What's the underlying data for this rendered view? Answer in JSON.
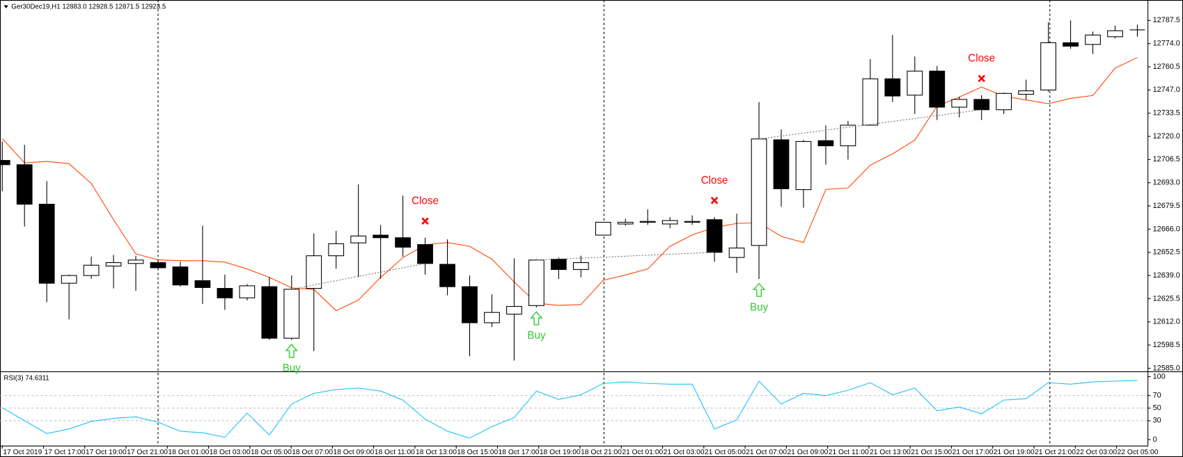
{
  "header": {
    "text": "Ger30Dec19,H1  12883.0 12928.5 12871.5 12923.5"
  },
  "chart_data": [
    {
      "type": "candlestick",
      "open": [
        12706,
        12703.5,
        12680.5,
        12634.5,
        12639,
        12644.5,
        12646,
        12646.5,
        12644,
        12636,
        12631.5,
        12626,
        12632.5,
        12602.5,
        12631.5,
        12650.5,
        12658,
        12662.5,
        12661,
        12657,
        12645.5,
        12632.5,
        12611.5,
        12616.5,
        12621.5,
        12648.5,
        12642.5,
        12662.5,
        12669,
        12670,
        12669,
        12670,
        12671.5,
        12649.5,
        12656.5,
        12718,
        12689,
        12717.5,
        12714.5,
        12726.5,
        12753.5,
        12744,
        12758,
        12737,
        12741.5,
        12735.5,
        12744.5,
        12747,
        12774.5,
        12773.5,
        12778,
        12782
      ],
      "high": [
        12717,
        12715,
        12694,
        12639.5,
        12650,
        12651,
        12650.5,
        12648.5,
        12647,
        12668,
        12639.5,
        12634,
        12638,
        12639,
        12663.5,
        12665,
        12692,
        12668.5,
        12685.5,
        12661,
        12660,
        12639,
        12628,
        12649,
        12648.5,
        12649.5,
        12650.5,
        12670,
        12672,
        12677.5,
        12673,
        12674,
        12673,
        12675,
        12740,
        12724,
        12718,
        12726.5,
        12729,
        12765,
        12779,
        12766.5,
        12761,
        12743,
        12744,
        12745.5,
        12753,
        12786.5,
        12787.5,
        12781,
        12784.5,
        12785
      ],
      "low": [
        12688,
        12667.5,
        12623.5,
        12613.5,
        12637,
        12631.5,
        12630,
        12643,
        12632.5,
        12622.5,
        12619,
        12624.5,
        12601.5,
        12601.5,
        12595,
        12643,
        12638,
        12637,
        12650,
        12639.5,
        12627.5,
        12592,
        12609,
        12589.5,
        12620.5,
        12637,
        12638,
        12662.5,
        12668,
        12668.5,
        12666.5,
        12668.5,
        12647,
        12640.5,
        12637,
        12679,
        12678.5,
        12703.5,
        12706.5,
        12726.5,
        12740,
        12733,
        12729.5,
        12731,
        12729.5,
        12733,
        12741.5,
        12746,
        12771,
        12768,
        12777,
        12778
      ],
      "close": [
        12703.5,
        12680.5,
        12634.5,
        12639,
        12645,
        12646.5,
        12648,
        12643.5,
        12633.5,
        12632,
        12626,
        12633,
        12602.5,
        12631,
        12650.5,
        12657.5,
        12662,
        12661,
        12655.5,
        12646,
        12632.5,
        12611.5,
        12617.5,
        12621,
        12648,
        12642.5,
        12646.5,
        12670,
        12670,
        12670.5,
        12671,
        12670.5,
        12652.5,
        12655,
        12718.5,
        12689.5,
        12717,
        12714.5,
        12726.5,
        12753.5,
        12743.5,
        12758,
        12737,
        12741.5,
        12735.5,
        12745,
        12746.5,
        12774.5,
        12772.5,
        12779,
        12781.5,
        12782
      ],
      "up_color": "#ffffff",
      "down_color": "#000000",
      "series": [
        {
          "color": "#ff4500",
          "values": [
            12718.7,
            12704.6,
            12705.4,
            12704.1,
            12692.6,
            12671.5,
            12651.6,
            12648.1,
            12647.6,
            12647.6,
            12646.8,
            12642.8,
            12637.9,
            12631.8,
            12630.9,
            12618.5,
            12624.7,
            12637.9,
            12649.4,
            12656.9,
            12658.2,
            12656.0,
            12648.5,
            12635.3,
            12622.9,
            12621.6,
            12622.1,
            12636.2,
            12639.3,
            12642.8,
            12656.0,
            12662.6,
            12667.0,
            12669.3,
            12669.7,
            12661.8,
            12658.2,
            12689.1,
            12690.0,
            12703.2,
            12709.8,
            12717.8,
            12737.6,
            12742.9,
            12748.7,
            12743.4,
            12741.2,
            12739.0,
            12742.1,
            12743.8,
            12759.7,
            12765.9
          ]
        }
      ],
      "annotations": [
        {
          "text": "Buy",
          "candle": 13,
          "color": "#32cd32"
        },
        {
          "text": "Close",
          "candle": 19,
          "color": "#ff0000"
        },
        {
          "text": "Buy",
          "candle": 24,
          "color": "#32cd32"
        },
        {
          "text": "Close",
          "candle": 32,
          "color": "#ff0000"
        },
        {
          "text": "Buy",
          "candle": 34,
          "color": "#32cd32"
        },
        {
          "text": "Close",
          "candle": 44,
          "color": "#ff0000"
        }
      ],
      "ylim": [
        12583.2,
        12798.5
      ],
      "yticks": [
        12787.5,
        {
          "value": 12774.0,
          "label": "12774.0"
        },
        12760.5,
        {
          "value": 12747.0,
          "label": "12747.0"
        },
        12733.5,
        {
          "value": 12720.0,
          "label": "12720.0"
        },
        12706.5,
        {
          "value": 12693.0,
          "label": "12693.0"
        },
        12679.5,
        {
          "value": 12666.0,
          "label": "12666.0"
        },
        12652.5,
        {
          "value": 12639.0,
          "label": "12639.0"
        },
        12625.5,
        {
          "value": 12612.0,
          "label": "12612.0"
        },
        12598.5,
        {
          "value": 12585.0,
          "label": "12585.0"
        }
      ],
      "x_labels": [
        "17 Oct 2019",
        "17 Oct 17:00",
        "17 Oct 19:00",
        "17 Oct 21:00",
        "18 Oct 01:00",
        "18 Oct 03:00",
        "18 Oct 05:00",
        "18 Oct 07:00",
        "18 Oct 09:00",
        "18 Oct 11:00",
        "18 Oct 13:00",
        "18 Oct 15:00",
        "18 Oct 17:00",
        "18 Oct 19:00",
        "18 Oct 21:00",
        "21 Oct 01:00",
        "21 Oct 03:00",
        "21 Oct 05:00",
        "21 Oct 07:00",
        "21 Oct 09:00",
        "21 Oct 11:00",
        "21 Oct 13:00",
        "21 Oct 15:00",
        "21 Oct 17:00",
        "21 Oct 19:00",
        "21 Oct 21:00",
        "22 Oct 03:00",
        "22 Oct 05:00"
      ]
    },
    {
      "type": "line",
      "title": "RSI(3) 74.6311",
      "series": [
        {
          "color": "#1ebeff",
          "values": [
            50.6,
            30.1,
            9.6,
            16.9,
            28.9,
            33.7,
            36.1,
            27.7,
            13.3,
            10.8,
            3.6,
            42.2,
            7.2,
            56.6,
            73.5,
            79.5,
            81.9,
            77.1,
            62.7,
            32.5,
            13.3,
            2.4,
            20.5,
            34.9,
            77.1,
            63.9,
            71.1,
            89.2,
            91.6,
            89.2,
            88.0,
            88.0,
            16.9,
            31.3,
            92.8,
            56.6,
            73.5,
            69.9,
            78.3,
            90.4,
            71.1,
            81.9,
            45.8,
            51.8,
            41.0,
            62.7,
            65.1,
            90.4,
            88.0,
            91.6,
            92.8,
            94.0
          ]
        }
      ],
      "ylim": [
        -9.6,
        106
      ],
      "yticks": [
        100,
        70,
        50,
        30,
        0
      ]
    }
  ]
}
